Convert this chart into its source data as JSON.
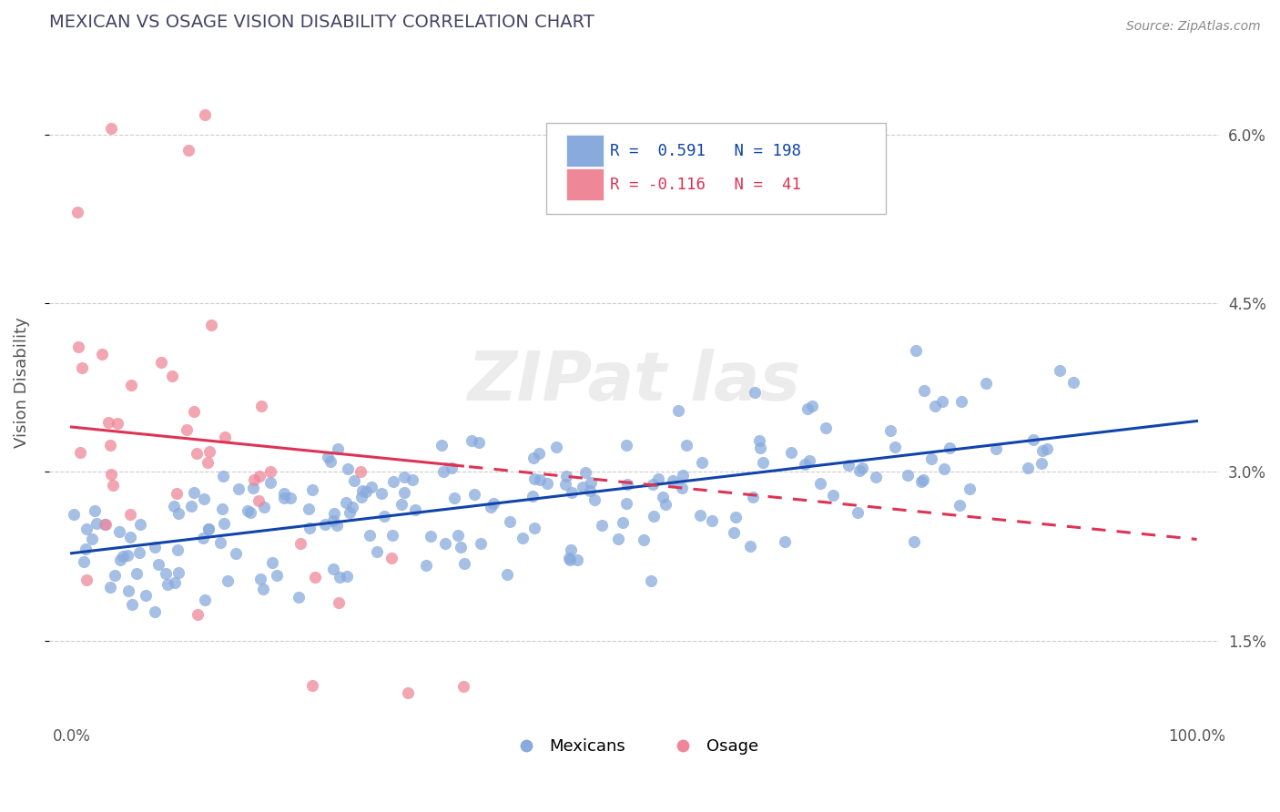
{
  "title": "MEXICAN VS OSAGE VISION DISABILITY CORRELATION CHART",
  "source": "Source: ZipAtlas.com",
  "ylabel": "Vision Disability",
  "yticks": [
    0.015,
    0.03,
    0.045,
    0.06
  ],
  "ytick_labels": [
    "1.5%",
    "3.0%",
    "4.5%",
    "6.0%"
  ],
  "xlim": [
    -0.02,
    1.02
  ],
  "ylim": [
    0.008,
    0.068
  ],
  "blue_R": 0.591,
  "blue_N": 198,
  "pink_R": -0.116,
  "pink_N": 41,
  "blue_color": "#88aadd",
  "pink_color": "#ee8899",
  "blue_line_color": "#1144aa",
  "pink_line_color": "#dd3355",
  "legend_label_blue": "Mexicans",
  "legend_label_pink": "Osage",
  "watermark": "ZIPat las",
  "background_color": "#ffffff",
  "grid_color": "#cccccc",
  "title_color": "#444466",
  "axis_color": "#555555"
}
